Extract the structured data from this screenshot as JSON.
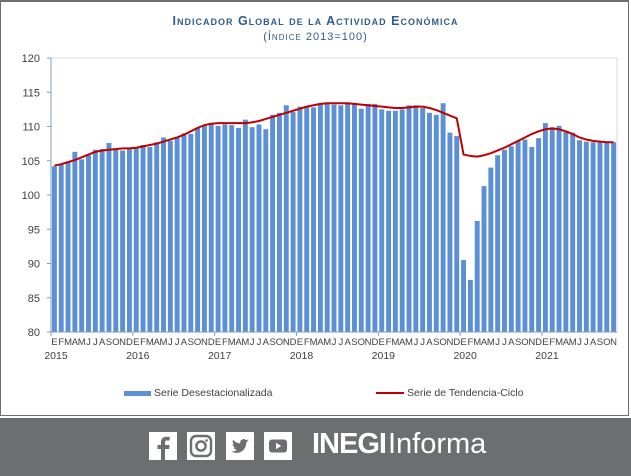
{
  "chart_data": {
    "type": "bar+line",
    "title": "Indicador Global de la Actividad Económica",
    "subtitle": "(Índice 2013=100)",
    "xlabel": "",
    "ylabel": "",
    "ylim": [
      80,
      120
    ],
    "yticks": [
      "80",
      "85",
      "90",
      "95",
      "100",
      "105",
      "110",
      "115",
      "120"
    ],
    "month_labels": [
      "E",
      "F",
      "M",
      "A",
      "M",
      "J",
      "J",
      "A",
      "S",
      "O",
      "N",
      "D"
    ],
    "year_labels": [
      "2015",
      "2016",
      "2017",
      "2018",
      "2019",
      "2020",
      "2021"
    ],
    "start": "2015-01",
    "end": "2021-11",
    "grid": false,
    "legend_position": "bottom",
    "colors": {
      "bars": "#5b8fd6",
      "line": "#c00000"
    },
    "series": [
      {
        "name": "Serie Desestacionalizada",
        "type": "bar",
        "values": [
          104.2,
          104.5,
          104.9,
          106.3,
          105.2,
          105.8,
          106.6,
          106.7,
          107.6,
          106.6,
          106.5,
          106.7,
          106.8,
          107.3,
          107.0,
          107.7,
          108.4,
          107.9,
          108.5,
          109.0,
          108.9,
          109.8,
          110.1,
          110.4,
          110.1,
          110.3,
          110.2,
          109.8,
          111.0,
          109.9,
          110.3,
          109.6,
          111.7,
          112.0,
          113.1,
          112.1,
          112.9,
          113.0,
          112.8,
          113.3,
          113.3,
          113.2,
          113.1,
          113.5,
          113.4,
          112.6,
          113.3,
          113.3,
          112.5,
          112.3,
          112.3,
          112.5,
          113.1,
          113.1,
          112.7,
          112.0,
          111.7,
          113.4,
          109.1,
          108.6,
          90.5,
          87.6,
          96.2,
          101.3,
          104.0,
          105.8,
          106.6,
          107.1,
          107.9,
          108.1,
          107.0,
          108.3,
          110.5,
          109.9,
          110.1,
          109.3,
          109.1,
          108.0,
          107.8,
          107.7,
          107.9,
          107.8,
          107.7
        ]
      },
      {
        "name": "Serie de Tendencia-Ciclo",
        "type": "line",
        "values": [
          104.3,
          104.5,
          104.8,
          105.1,
          105.5,
          105.9,
          106.3,
          106.5,
          106.6,
          106.7,
          106.8,
          106.8,
          106.9,
          107.1,
          107.3,
          107.5,
          107.8,
          108.1,
          108.4,
          108.8,
          109.3,
          109.8,
          110.2,
          110.4,
          110.5,
          110.5,
          110.5,
          110.5,
          110.5,
          110.6,
          110.8,
          111.1,
          111.4,
          111.7,
          112.0,
          112.3,
          112.6,
          112.9,
          113.1,
          113.3,
          113.4,
          113.4,
          113.4,
          113.4,
          113.3,
          113.2,
          113.1,
          113.0,
          112.9,
          112.8,
          112.7,
          112.7,
          112.8,
          112.9,
          112.9,
          112.7,
          112.4,
          112.0,
          111.6,
          111.2,
          105.9,
          105.7,
          105.6,
          105.8,
          106.1,
          106.5,
          106.9,
          107.4,
          107.9,
          108.4,
          108.9,
          109.3,
          109.6,
          109.7,
          109.6,
          109.3,
          108.9,
          108.4,
          108.1,
          107.9,
          107.8,
          107.7,
          107.7
        ]
      }
    ]
  },
  "footer": {
    "icons": [
      "facebook-icon",
      "instagram-icon",
      "twitter-icon",
      "youtube-icon"
    ],
    "brand_bold": "INEGI",
    "brand_light": "Informa",
    "background": "#6d6e70"
  }
}
